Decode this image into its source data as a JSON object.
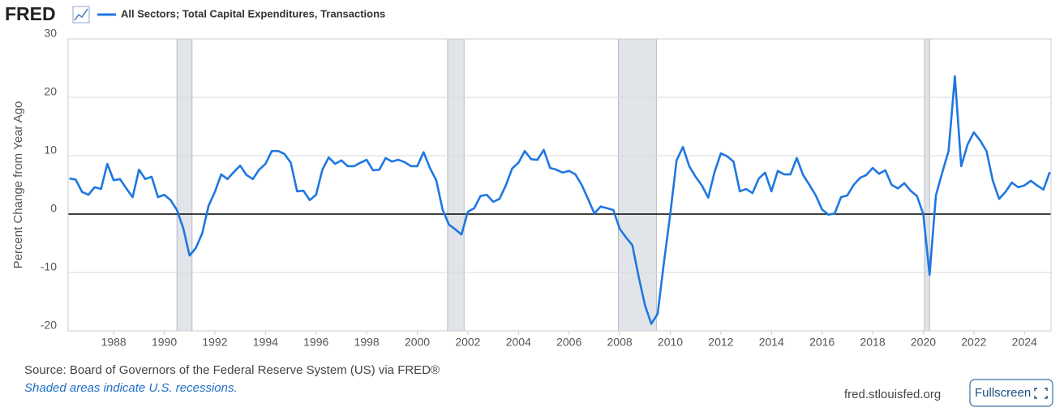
{
  "chart_data": {
    "type": "line",
    "logo": "FRED",
    "ylabel": "Percent Change from Year Ago",
    "source": "Source: Board of Governors of the Federal Reserve System (US) via FRED®",
    "note": "Shaded areas indicate U.S. recessions.",
    "site": "fred.stlouisfed.org",
    "button": "Fullscreen",
    "xlim": [
      1986.2,
      2025.05
    ],
    "xticks": [
      1988,
      1990,
      1992,
      1994,
      1996,
      1998,
      2000,
      2002,
      2004,
      2006,
      2008,
      2010,
      2012,
      2014,
      2016,
      2018,
      2020,
      2022,
      2024
    ],
    "ylim": [
      -20,
      30
    ],
    "yticks": [
      -20,
      -10,
      0,
      10,
      20,
      30
    ],
    "grid": true,
    "recessions": [
      [
        1990.5,
        1991.1
      ],
      [
        2001.2,
        2001.85
      ],
      [
        2007.95,
        2009.45
      ],
      [
        2020.05,
        2020.25
      ]
    ],
    "x": [
      1986.25,
      1986.5,
      1986.75,
      1987,
      1987.25,
      1987.5,
      1987.75,
      1988,
      1988.25,
      1988.5,
      1988.75,
      1989,
      1989.25,
      1989.5,
      1989.75,
      1990,
      1990.25,
      1990.5,
      1990.75,
      1991,
      1991.25,
      1991.5,
      1991.75,
      1992,
      1992.25,
      1992.5,
      1992.75,
      1993,
      1993.25,
      1993.5,
      1993.75,
      1994,
      1994.25,
      1994.5,
      1994.75,
      1995,
      1995.25,
      1995.5,
      1995.75,
      1996,
      1996.25,
      1996.5,
      1996.75,
      1997,
      1997.25,
      1997.5,
      1997.75,
      1998,
      1998.25,
      1998.5,
      1998.75,
      1999,
      1999.25,
      1999.5,
      1999.75,
      2000,
      2000.25,
      2000.5,
      2000.75,
      2001,
      2001.25,
      2001.5,
      2001.75,
      2002,
      2002.25,
      2002.5,
      2002.75,
      2003,
      2003.25,
      2003.5,
      2003.75,
      2004,
      2004.25,
      2004.5,
      2004.75,
      2005,
      2005.25,
      2005.5,
      2005.75,
      2006,
      2006.25,
      2006.5,
      2006.75,
      2007,
      2007.25,
      2007.5,
      2007.75,
      2008,
      2008.25,
      2008.5,
      2008.75,
      2009,
      2009.25,
      2009.5,
      2009.75,
      2010,
      2010.25,
      2010.5,
      2010.75,
      2011,
      2011.25,
      2011.5,
      2011.75,
      2012,
      2012.25,
      2012.5,
      2012.75,
      2013,
      2013.25,
      2013.5,
      2013.75,
      2014,
      2014.25,
      2014.5,
      2014.75,
      2015,
      2015.25,
      2015.5,
      2015.75,
      2016,
      2016.25,
      2016.5,
      2016.75,
      2017,
      2017.25,
      2017.5,
      2017.75,
      2018,
      2018.25,
      2018.5,
      2018.75,
      2019,
      2019.25,
      2019.5,
      2019.75,
      2020,
      2020.25,
      2020.5,
      2020.75,
      2021,
      2021.25,
      2021.5,
      2021.75,
      2022,
      2022.25,
      2022.5,
      2022.75,
      2023,
      2023.25,
      2023.5,
      2023.75,
      2024,
      2024.25,
      2024.5,
      2024.75,
      2025
    ],
    "series": [
      {
        "name": "All Sectors; Total Capital Expenditures, Transactions",
        "color": "#1f77e0",
        "values": [
          6.1,
          5.9,
          3.8,
          3.3,
          4.6,
          4.3,
          8.6,
          5.8,
          6.0,
          4.4,
          2.9,
          7.6,
          6.0,
          6.4,
          2.9,
          3.3,
          2.4,
          0.7,
          -2.4,
          -7.1,
          -5.8,
          -3.3,
          1.4,
          3.8,
          6.8,
          6.0,
          7.2,
          8.3,
          6.7,
          6.0,
          7.6,
          8.6,
          10.8,
          10.8,
          10.3,
          8.8,
          3.9,
          4.0,
          2.4,
          3.3,
          7.6,
          9.7,
          8.6,
          9.2,
          8.2,
          8.2,
          8.8,
          9.3,
          7.5,
          7.6,
          9.6,
          9.0,
          9.3,
          8.9,
          8.2,
          8.2,
          10.6,
          7.9,
          5.8,
          0.8,
          -1.8,
          -2.6,
          -3.5,
          0.4,
          1.0,
          3.1,
          3.3,
          2.1,
          2.6,
          4.9,
          7.8,
          8.8,
          10.8,
          9.4,
          9.3,
          11.0,
          7.9,
          7.6,
          7.1,
          7.4,
          6.8,
          5.0,
          2.6,
          0.1,
          1.3,
          1.0,
          0.7,
          -2.5,
          -4.0,
          -5.3,
          -10.7,
          -15.6,
          -18.8,
          -17.1,
          -8.3,
          0,
          9.2,
          11.5,
          8.2,
          6.4,
          4.9,
          2.8,
          7.2,
          10.4,
          9.9,
          9.0,
          3.9,
          4.3,
          3.6,
          6.1,
          7.1,
          3.9,
          7.4,
          6.8,
          6.8,
          9.6,
          6.7,
          5.0,
          3.2,
          0.8,
          -0.1,
          0.1,
          2.9,
          3.2,
          5.0,
          6.2,
          6.7,
          7.9,
          6.9,
          7.5,
          5.0,
          4.4,
          5.3,
          4.0,
          3.1,
          0,
          -10.4,
          3.2,
          7.1,
          10.8,
          23.6,
          8.2,
          11.9,
          14.0,
          12.6,
          10.8,
          5.7,
          2.6,
          3.8,
          5.4,
          4.6,
          4.9,
          5.7,
          4.9,
          4.2,
          7.2
        ]
      }
    ]
  }
}
